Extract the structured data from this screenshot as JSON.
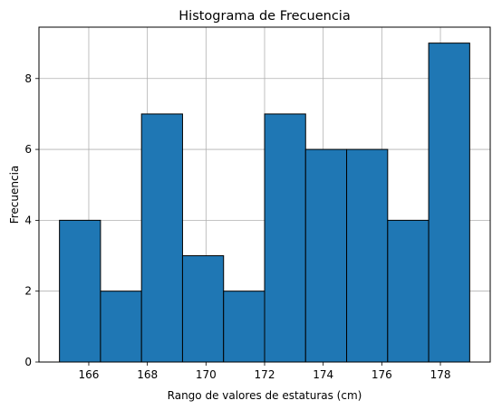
{
  "chart_data": {
    "type": "bar",
    "title": "Histograma de Frecuencia",
    "xlabel": "Rango de valores de estaturas (cm)",
    "ylabel": "Frecuencia",
    "bin_edges": [
      165.0,
      166.4,
      167.8,
      169.2,
      170.6,
      172.0,
      173.4,
      174.8,
      176.2,
      177.6,
      179.0
    ],
    "values": [
      4,
      2,
      7,
      3,
      2,
      7,
      6,
      6,
      4,
      9
    ],
    "xlim": [
      164.3,
      179.7
    ],
    "ylim": [
      0,
      9.45
    ],
    "xticks": [
      166,
      168,
      170,
      172,
      174,
      176,
      178
    ],
    "yticks": [
      0,
      2,
      4,
      6,
      8
    ],
    "grid": true,
    "bar_color": "#1f77b4",
    "edge_color": "#000000"
  }
}
